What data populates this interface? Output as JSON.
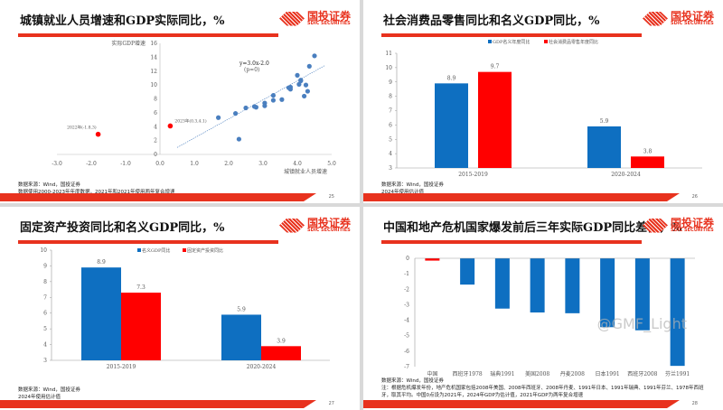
{
  "logo": {
    "cn": "国投证券",
    "en": "SDIC SECURITIES"
  },
  "watermark": "@GMF_Light",
  "colors": {
    "blue": "#0e6fc1",
    "red": "#ff0000",
    "accent": "#e8321e",
    "scatter": "#4a7fbf"
  },
  "panels": [
    {
      "title": "城镇就业人员增速和GDP实际同比，%",
      "page": "25",
      "footnotes": [
        "数据来源：Wind，国投证券",
        "数据使用2000-2023年年度数据，2021年和2021年使用两年复合增速"
      ]
    },
    {
      "title": "社会消费品零售同比和名义GDP同比，%",
      "page": "26",
      "footnotes": [
        "数据来源：Wind，国投证券",
        "2024年使用估计值"
      ]
    },
    {
      "title": "固定资产投资同比和名义GDP同比，%",
      "page": "27",
      "footnotes": [
        "数据来源：Wind，国投证券",
        "2024年使用估计值"
      ]
    },
    {
      "title": "中国和地产危机国家爆发前后三年实际GDP同比差值，%",
      "page": "28",
      "footnotes": [
        "数据来源：Wind，国投证券",
        "注：根据危机爆发年份，地产危机国家包括2008年美国、2008年西班牙、2008年丹麦、1991年日本、1991年瑞典、1991年芬兰、1978年西班",
        "牙，取其平均。中国0点设为2021年，2024年GDP为估计值，2021年GDP为两年复合增速"
      ]
    }
  ],
  "chart_data": [
    {
      "type": "scatter",
      "ylabel": "实际GDP增速",
      "xlabel": "城镇就业人员增速",
      "xlim": [
        -3,
        5
      ],
      "ylim": [
        0,
        16
      ],
      "xticks": [
        "-3.0",
        "-2.0",
        "-1.0",
        "0.0",
        "1.0",
        "2.0",
        "3.0",
        "4.0",
        "5.0"
      ],
      "yticks": [
        "0",
        "2",
        "4",
        "6",
        "8",
        "10",
        "12",
        "14",
        "16"
      ],
      "equation": "y=3.0x-2.0",
      "r": "(p=0)",
      "points": [
        [
          1.7,
          5.3
        ],
        [
          2.2,
          5.9
        ],
        [
          2.3,
          2.2
        ],
        [
          2.5,
          6.7
        ],
        [
          2.75,
          6.9
        ],
        [
          2.8,
          6.8
        ],
        [
          3.05,
          7.4
        ],
        [
          3.05,
          7.0
        ],
        [
          3.3,
          8.5
        ],
        [
          3.3,
          7.8
        ],
        [
          3.55,
          7.9
        ],
        [
          3.75,
          9.6
        ],
        [
          3.8,
          9.7
        ],
        [
          3.8,
          9.4
        ],
        [
          4.0,
          11.4
        ],
        [
          4.05,
          10.1
        ],
        [
          4.1,
          10.6
        ],
        [
          4.1,
          10.7
        ],
        [
          4.2,
          8.4
        ],
        [
          4.25,
          10.0
        ],
        [
          4.3,
          9.1
        ],
        [
          4.35,
          12.7
        ],
        [
          4.5,
          14.2
        ]
      ],
      "highlighted": [
        {
          "label": "2022年(-1.8,3)",
          "x": -1.8,
          "y": 2.9
        },
        {
          "label": "2023年(0.3,4.1)",
          "x": 0.3,
          "y": 4.1
        }
      ],
      "trendline": [
        [
          0.5,
          1.0
        ],
        [
          4.8,
          12.8
        ]
      ]
    },
    {
      "type": "bar",
      "ylim": [
        3,
        11
      ],
      "yticks": [
        "3",
        "4",
        "5",
        "6",
        "7",
        "8",
        "9",
        "10",
        "11"
      ],
      "legend": "top",
      "categories": [
        "2015-2019",
        "2020-2024"
      ],
      "series": [
        {
          "name": "GDP名义年度同比",
          "values": [
            8.9,
            5.9
          ],
          "labels": [
            "8.9",
            "5.9"
          ]
        },
        {
          "name": "社会消费品零售年度同比",
          "values": [
            9.7,
            3.8
          ],
          "labels": [
            "9.7",
            "3.8"
          ]
        }
      ]
    },
    {
      "type": "bar",
      "ylim": [
        3,
        10
      ],
      "yticks": [
        "3",
        "4",
        "5",
        "6",
        "7",
        "8",
        "9",
        "10"
      ],
      "legend": "top",
      "categories": [
        "2015-2019",
        "2020-2024"
      ],
      "series": [
        {
          "name": "名义GDP同比",
          "values": [
            8.9,
            5.9
          ],
          "labels": [
            "8.9",
            "5.9"
          ]
        },
        {
          "name": "固定资产投资同比",
          "values": [
            7.3,
            3.9
          ],
          "labels": [
            "7.3",
            "3.9"
          ]
        }
      ]
    },
    {
      "type": "bar",
      "ylim": [
        -7,
        0
      ],
      "yticks": [
        "0",
        "-1",
        "-2",
        "-3",
        "-4",
        "-5",
        "-6",
        "-7"
      ],
      "categories": [
        "中国",
        "西班牙1978",
        "瑞典1991",
        "美国2008",
        "丹麦2008",
        "日本1991",
        "西班牙2008",
        "芬兰1991"
      ],
      "values": [
        -0.15,
        -1.7,
        -3.25,
        -3.5,
        -3.55,
        -4.45,
        -4.65,
        -6.95
      ]
    }
  ]
}
